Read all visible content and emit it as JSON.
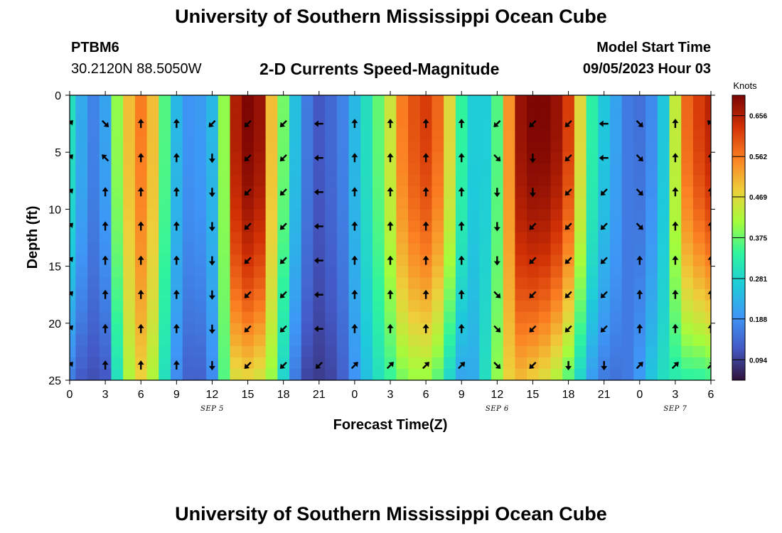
{
  "header": {
    "title": "University of Southern Mississippi Ocean Cube",
    "station": "PTBM6",
    "coords": "30.2120N  88.5050W",
    "subtitle": "2-D Currents Speed-Magnitude",
    "model_start_label": "Model Start Time",
    "model_start_value": "09/05/2023 Hour 03"
  },
  "footer": {
    "title": "University of Southern Mississippi Ocean Cube"
  },
  "chart_data": {
    "type": "heatmap",
    "title": "2-D Currents Speed-Magnitude",
    "xlabel": "Forecast Time(Z)",
    "ylabel": "Depth (ft)",
    "x_tick_labels": [
      "0",
      "3",
      "6",
      "9",
      "12",
      "15",
      "18",
      "21",
      "0",
      "3",
      "6",
      "9",
      "12",
      "15",
      "18",
      "21",
      "0",
      "3",
      "6"
    ],
    "x_hours": [
      0,
      3,
      6,
      9,
      12,
      15,
      18,
      21,
      24,
      27,
      30,
      33,
      36,
      39,
      42,
      45,
      48,
      51,
      54
    ],
    "xlim": [
      0,
      54
    ],
    "date_labels": [
      {
        "text": "SEP 5",
        "hour": 12
      },
      {
        "text": "SEP 6",
        "hour": 36
      },
      {
        "text": "SEP 7",
        "hour": 51
      }
    ],
    "y_ticks": [
      0,
      5,
      10,
      15,
      20,
      25
    ],
    "ylim": [
      0,
      25
    ],
    "colorbar": {
      "title": "Knots",
      "ticks": [
        "0.094",
        "0.188",
        "0.281",
        "0.375",
        "0.469",
        "0.562",
        "0.656"
      ],
      "range": [
        0.047,
        0.703
      ],
      "colors": [
        "#30123b",
        "#4458c4",
        "#3e96f6",
        "#1ecbda",
        "#2ef49f",
        "#a4fc3c",
        "#eecf3a",
        "#fb8022",
        "#d23105",
        "#7a0403"
      ]
    },
    "speed_profile": {
      "hours": [
        0,
        1,
        2,
        3,
        4,
        5,
        6,
        7,
        8,
        9,
        10,
        11,
        12,
        13,
        14,
        15,
        16,
        17,
        18,
        19,
        20,
        21,
        22,
        23,
        24,
        25,
        26,
        27,
        28,
        29,
        30,
        31,
        32,
        33,
        34,
        35,
        36,
        37,
        38,
        39,
        40,
        41,
        42,
        43,
        44,
        45,
        46,
        47,
        48,
        49,
        50,
        51,
        52,
        53,
        54
      ],
      "surface_knots": [
        0.3,
        0.22,
        0.17,
        0.21,
        0.4,
        0.5,
        0.56,
        0.5,
        0.36,
        0.24,
        0.19,
        0.2,
        0.24,
        0.4,
        0.66,
        0.7,
        0.68,
        0.5,
        0.38,
        0.25,
        0.16,
        0.12,
        0.14,
        0.17,
        0.24,
        0.3,
        0.37,
        0.45,
        0.56,
        0.6,
        0.62,
        0.58,
        0.47,
        0.34,
        0.27,
        0.27,
        0.36,
        0.54,
        0.68,
        0.7,
        0.7,
        0.68,
        0.62,
        0.47,
        0.33,
        0.26,
        0.21,
        0.16,
        0.15,
        0.18,
        0.26,
        0.44,
        0.58,
        0.62,
        0.65
      ],
      "bottom_knots": [
        0.16,
        0.12,
        0.11,
        0.12,
        0.3,
        0.42,
        0.48,
        0.42,
        0.3,
        0.18,
        0.13,
        0.13,
        0.18,
        0.36,
        0.46,
        0.47,
        0.45,
        0.4,
        0.28,
        0.16,
        0.1,
        0.09,
        0.1,
        0.13,
        0.19,
        0.25,
        0.3,
        0.34,
        0.38,
        0.4,
        0.4,
        0.36,
        0.28,
        0.21,
        0.22,
        0.3,
        0.4,
        0.48,
        0.5,
        0.48,
        0.46,
        0.42,
        0.36,
        0.28,
        0.2,
        0.16,
        0.15,
        0.16,
        0.2,
        0.26,
        0.3,
        0.32,
        0.33,
        0.33,
        0.34
      ]
    },
    "arrow_columns": [
      {
        "hour": 0,
        "directions": [
          "NE",
          "NE",
          "NE",
          "NE",
          "NE",
          "NE",
          "NE",
          "NE"
        ]
      },
      {
        "hour": 3,
        "directions": [
          "SE",
          "NW",
          "N",
          "N",
          "N",
          "N",
          "N",
          "N"
        ]
      },
      {
        "hour": 6,
        "directions": [
          "N",
          "N",
          "N",
          "N",
          "N",
          "N",
          "N",
          "N"
        ]
      },
      {
        "hour": 9,
        "directions": [
          "N",
          "N",
          "N",
          "N",
          "N",
          "N",
          "N",
          "N"
        ]
      },
      {
        "hour": 12,
        "directions": [
          "SW",
          "S",
          "S",
          "S",
          "S",
          "S",
          "S",
          "S"
        ]
      },
      {
        "hour": 15,
        "directions": [
          "SW",
          "SW",
          "SW",
          "SW",
          "SW",
          "SW",
          "SW",
          "SW"
        ]
      },
      {
        "hour": 18,
        "directions": [
          "SW",
          "SW",
          "SW",
          "SW",
          "SW",
          "SW",
          "SW",
          "SW"
        ]
      },
      {
        "hour": 21,
        "directions": [
          "W",
          "W",
          "W",
          "W",
          "W",
          "W",
          "W",
          "SW"
        ]
      },
      {
        "hour": 24,
        "directions": [
          "N",
          "N",
          "N",
          "N",
          "N",
          "N",
          "N",
          "NE"
        ]
      },
      {
        "hour": 27,
        "directions": [
          "N",
          "N",
          "N",
          "N",
          "N",
          "N",
          "N",
          "NE"
        ]
      },
      {
        "hour": 30,
        "directions": [
          "N",
          "N",
          "N",
          "N",
          "N",
          "N",
          "N",
          "NE"
        ]
      },
      {
        "hour": 33,
        "directions": [
          "N",
          "N",
          "N",
          "N",
          "N",
          "N",
          "N",
          "NE"
        ]
      },
      {
        "hour": 36,
        "directions": [
          "SW",
          "SE",
          "S",
          "S",
          "S",
          "SE",
          "SE",
          "SE"
        ]
      },
      {
        "hour": 39,
        "directions": [
          "SW",
          "S",
          "S",
          "SW",
          "SW",
          "SW",
          "SW",
          "SW"
        ]
      },
      {
        "hour": 42,
        "directions": [
          "SW",
          "SW",
          "SW",
          "SW",
          "SW",
          "SW",
          "SW",
          "S"
        ]
      },
      {
        "hour": 45,
        "directions": [
          "W",
          "W",
          "SW",
          "SW",
          "SW",
          "SW",
          "SW",
          "S"
        ]
      },
      {
        "hour": 48,
        "directions": [
          "SE",
          "SE",
          "SE",
          "SE",
          "N",
          "N",
          "N",
          "NE"
        ]
      },
      {
        "hour": 51,
        "directions": [
          "N",
          "N",
          "N",
          "N",
          "N",
          "N",
          "N",
          "NE"
        ]
      },
      {
        "hour": 54,
        "directions": [
          "NW",
          "N",
          "N",
          "N",
          "N",
          "N",
          "N",
          "NE"
        ]
      }
    ],
    "arrow_depths_ft": [
      2.5,
      5.5,
      8.5,
      11.5,
      14.5,
      17.5,
      20.5,
      23.7
    ]
  }
}
